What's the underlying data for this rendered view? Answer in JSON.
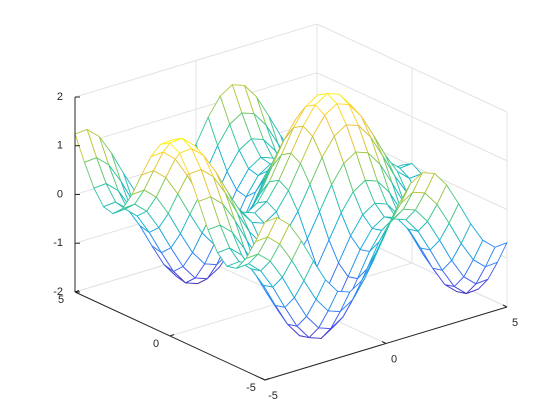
{
  "chart_data": {
    "type": "mesh",
    "x": [
      -5,
      -4.5,
      -4,
      -3.5,
      -3,
      -2.5,
      -2,
      -1.5,
      -1,
      -0.5,
      0,
      0.5,
      1,
      1.5,
      2,
      2.5,
      3,
      3.5,
      4,
      4.5,
      5
    ],
    "y": [
      -5,
      -4.5,
      -4,
      -3.5,
      -3,
      -2.5,
      -2,
      -1.5,
      -1,
      -0.5,
      0,
      0.5,
      1,
      1.5,
      2,
      2.5,
      3,
      3.5,
      4,
      4.5,
      5
    ],
    "z": [
      [
        1.24,
        1.26,
        1.04,
        0.63,
        0.14,
        -0.32,
        -0.63,
        -0.72,
        -0.56,
        -0.2,
        0.28,
        0.76,
        1.12,
        1.28,
        1.19,
        0.88,
        0.42,
        -0.07,
        -0.48,
        -0.7,
        -0.68
      ],
      [
        0.75,
        0.77,
        0.55,
        0.14,
        -0.35,
        -0.81,
        -1.12,
        -1.21,
        -1.05,
        -0.69,
        -0.21,
        0.27,
        0.63,
        0.79,
        0.7,
        0.39,
        -0.07,
        -0.56,
        -0.97,
        -1.19,
        -1.17
      ],
      [
        0.31,
        0.33,
        0.11,
        -0.3,
        -0.79,
        -1.25,
        -1.56,
        -1.65,
        -1.49,
        -1.13,
        -0.65,
        -0.17,
        0.19,
        0.35,
        0.26,
        -0.05,
        -0.51,
        -1.0,
        -1.41,
        -1.63,
        -1.61
      ],
      [
        0.02,
        0.04,
        -0.18,
        -0.59,
        -1.08,
        -1.54,
        -1.85,
        -1.94,
        -1.78,
        -1.42,
        -0.94,
        -0.46,
        -0.1,
        0.06,
        -0.03,
        -0.34,
        -0.8,
        -1.29,
        -1.7,
        -1.92,
        -1.9
      ],
      [
        -0.03,
        -0.01,
        -0.23,
        -0.64,
        -1.13,
        -1.59,
        -1.9,
        -1.99,
        -1.83,
        -1.47,
        -0.99,
        -0.51,
        -0.15,
        0.01,
        -0.08,
        -0.39,
        -0.85,
        -1.34,
        -1.75,
        -1.97,
        -1.95
      ],
      [
        0.16,
        0.18,
        -0.04,
        -0.45,
        -0.94,
        -1.4,
        -1.71,
        -1.8,
        -1.64,
        -1.28,
        -0.8,
        -0.32,
        0.04,
        0.2,
        0.11,
        -0.2,
        -0.66,
        -1.15,
        -1.56,
        -1.78,
        -1.76
      ],
      [
        0.54,
        0.56,
        0.34,
        -0.07,
        -0.56,
        -1.02,
        -1.33,
        -1.42,
        -1.26,
        -0.9,
        -0.42,
        0.06,
        0.42,
        0.58,
        0.49,
        0.18,
        -0.28,
        -0.77,
        -1.18,
        -1.4,
        -1.38
      ],
      [
        1.03,
        1.05,
        0.83,
        0.42,
        -0.07,
        -0.53,
        -0.84,
        -0.93,
        -0.77,
        -0.41,
        0.07,
        0.55,
        0.91,
        1.07,
        0.98,
        0.67,
        0.21,
        -0.28,
        -0.69,
        -0.91,
        -0.89
      ],
      [
        1.5,
        1.52,
        1.3,
        0.89,
        0.4,
        -0.06,
        -0.37,
        -0.46,
        -0.3,
        0.06,
        0.54,
        1.02,
        1.38,
        1.54,
        1.45,
        1.14,
        0.68,
        0.19,
        -0.22,
        -0.44,
        -0.42
      ],
      [
        1.84,
        1.86,
        1.64,
        1.23,
        0.74,
        0.28,
        -0.03,
        -0.12,
        0.04,
        0.4,
        0.88,
        1.36,
        1.72,
        1.88,
        1.79,
        1.48,
        1.02,
        0.53,
        0.12,
        -0.1,
        -0.08
      ],
      [
        1.96,
        1.98,
        1.76,
        1.35,
        0.86,
        0.4,
        0.09,
        0,
        0.16,
        0.52,
        1,
        1.48,
        1.84,
        2,
        1.91,
        1.6,
        1.14,
        0.65,
        0.24,
        0.02,
        0.04
      ],
      [
        1.84,
        1.86,
        1.64,
        1.23,
        0.74,
        0.28,
        -0.03,
        -0.12,
        0.04,
        0.4,
        0.88,
        1.36,
        1.72,
        1.88,
        1.79,
        1.48,
        1.02,
        0.53,
        0.12,
        -0.1,
        -0.08
      ],
      [
        1.5,
        1.52,
        1.3,
        0.89,
        0.4,
        -0.06,
        -0.37,
        -0.46,
        -0.3,
        0.06,
        0.54,
        1.02,
        1.38,
        1.54,
        1.45,
        1.14,
        0.68,
        0.19,
        -0.22,
        -0.44,
        -0.42
      ],
      [
        1.03,
        1.05,
        0.83,
        0.42,
        -0.07,
        -0.53,
        -0.84,
        -0.93,
        -0.77,
        -0.41,
        0.07,
        0.55,
        0.91,
        1.07,
        0.98,
        0.67,
        0.21,
        -0.28,
        -0.69,
        -0.91,
        -0.89
      ],
      [
        0.54,
        0.56,
        0.34,
        -0.07,
        -0.56,
        -1.02,
        -1.33,
        -1.42,
        -1.26,
        -0.9,
        -0.42,
        0.06,
        0.42,
        0.58,
        0.49,
        0.18,
        -0.28,
        -0.77,
        -1.18,
        -1.4,
        -1.38
      ],
      [
        0.16,
        0.18,
        -0.04,
        -0.45,
        -0.94,
        -1.4,
        -1.71,
        -1.8,
        -1.64,
        -1.28,
        -0.8,
        -0.32,
        0.04,
        0.2,
        0.11,
        -0.2,
        -0.66,
        -1.15,
        -1.56,
        -1.78,
        -1.76
      ],
      [
        -0.03,
        -0.01,
        -0.23,
        -0.64,
        -1.13,
        -1.59,
        -1.9,
        -1.99,
        -1.83,
        -1.47,
        -0.99,
        -0.51,
        -0.15,
        0.01,
        -0.08,
        -0.39,
        -0.85,
        -1.34,
        -1.75,
        -1.97,
        -1.95
      ],
      [
        0.02,
        0.04,
        -0.18,
        -0.59,
        -1.08,
        -1.54,
        -1.85,
        -1.94,
        -1.78,
        -1.42,
        -0.94,
        -0.46,
        -0.1,
        0.06,
        -0.03,
        -0.34,
        -0.8,
        -1.29,
        -1.7,
        -1.92,
        -1.9
      ],
      [
        0.31,
        0.33,
        0.11,
        -0.3,
        -0.79,
        -1.25,
        -1.56,
        -1.65,
        -1.49,
        -1.13,
        -0.65,
        -0.17,
        0.19,
        0.35,
        0.26,
        -0.05,
        -0.51,
        -1.0,
        -1.41,
        -1.63,
        -1.61
      ],
      [
        0.75,
        0.77,
        0.55,
        0.14,
        -0.35,
        -0.81,
        -1.12,
        -1.21,
        -1.05,
        -0.69,
        -0.21,
        0.27,
        0.63,
        0.79,
        0.7,
        0.39,
        -0.07,
        -0.56,
        -0.97,
        -1.19,
        -1.17
      ],
      [
        1.24,
        1.26,
        1.04,
        0.63,
        0.14,
        -0.32,
        -0.63,
        -0.72,
        -0.56,
        -0.2,
        0.28,
        0.76,
        1.12,
        1.28,
        1.19,
        0.88,
        0.42,
        -0.07,
        -0.48,
        -0.7,
        -0.68
      ]
    ],
    "xlim": [
      -5,
      5
    ],
    "ylim": [
      -5,
      5
    ],
    "zlim": [
      -2,
      2
    ],
    "xticks": [
      -5,
      0,
      5
    ],
    "yticks": [
      -5,
      0,
      5
    ],
    "zticks": [
      -2,
      -1,
      0,
      1,
      2
    ],
    "grid": true,
    "colormap": [
      "#3e26a8",
      "#4852f4",
      "#2e87f7",
      "#11b1d6",
      "#37c897",
      "#abc739",
      "#fec338",
      "#f9fb15"
    ]
  }
}
